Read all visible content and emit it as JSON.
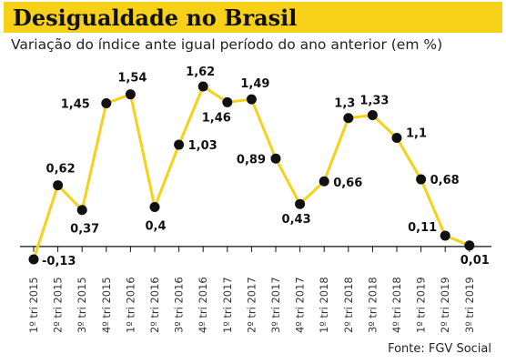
{
  "header": {
    "title": "Desigualdade no Brasil",
    "subtitle": "Variação do índice ante igual período do ano anterior (em %)"
  },
  "source": "Fonte: FGV Social",
  "chart_data": {
    "type": "line",
    "title": "Desigualdade no Brasil",
    "subtitle": "Variação do índice ante igual período do ano anterior (em %)",
    "categories": [
      "1º tri 2015",
      "2º tri 2015",
      "3º tri 2015",
      "4º tri 2015",
      "1º tri 2016",
      "2º tri 2016",
      "3º tri 2016",
      "4º tri 2016",
      "1º tri 2017",
      "2º tri 2017",
      "3º tri 2017",
      "4º tri 2017",
      "1º tri 2018",
      "2º tri 2018",
      "3º tri 2018",
      "4º tri 2018",
      "1º tri 2019",
      "2º tri 2019",
      "3º tri 2019"
    ],
    "values": [
      -0.13,
      0.62,
      0.37,
      1.45,
      1.54,
      0.4,
      1.03,
      1.62,
      1.46,
      1.49,
      0.89,
      0.43,
      0.66,
      1.3,
      1.33,
      1.1,
      0.68,
      0.11,
      0.01
    ],
    "labels": [
      "-0,13",
      "0,62",
      "0,37",
      "1,45",
      "1,54",
      "0,4",
      "1,03",
      "1,62",
      "1,46",
      "1,49",
      "0,89",
      "0,43",
      "0,66",
      "1,3",
      "1,33",
      "1,1",
      "0,68",
      "0,11",
      "0,01"
    ],
    "xlabel": "",
    "ylabel": "",
    "ylim": [
      -0.13,
      1.62
    ],
    "grid": false,
    "line_color": "#f7d117",
    "marker_color": "#111111",
    "axis_color": "#111111"
  }
}
